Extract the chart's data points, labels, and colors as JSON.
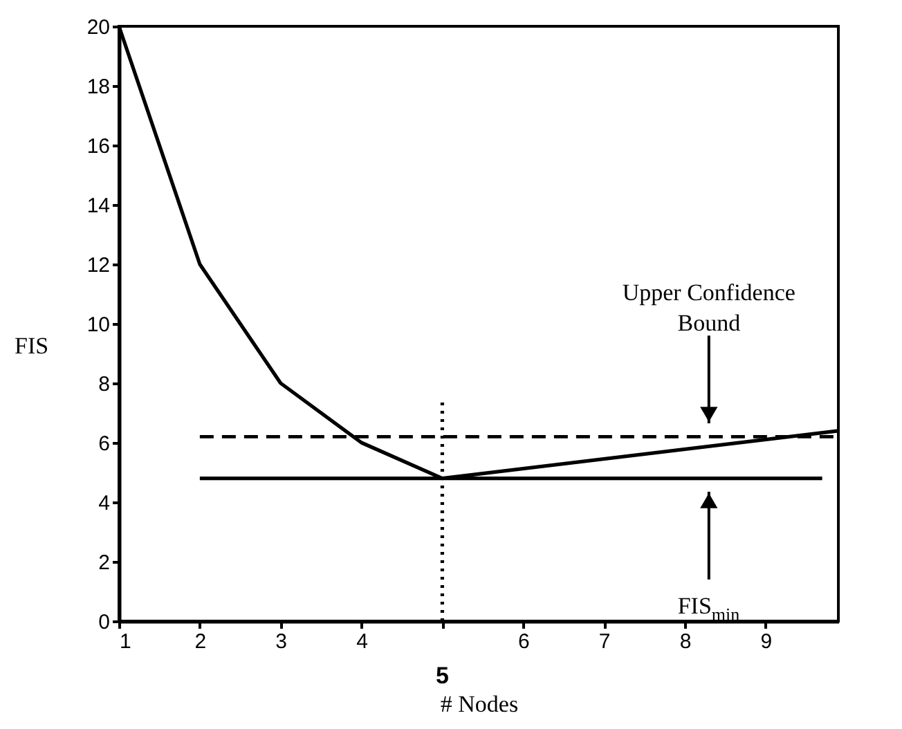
{
  "chart_data": {
    "type": "line",
    "xlabel": "# Nodes",
    "ylabel": "FIS",
    "xlim": [
      1,
      9.9
    ],
    "ylim": [
      0,
      20
    ],
    "xticks": [
      1,
      2,
      3,
      4,
      {
        "value": 5,
        "label": null
      },
      6,
      7,
      8,
      9
    ],
    "yticks": [
      0,
      2,
      4,
      6,
      8,
      10,
      12,
      14,
      16,
      18,
      20
    ],
    "series": [
      {
        "color": "#000000",
        "x": [
          1,
          2,
          3,
          4,
          5,
          9.9
        ],
        "values": [
          20,
          12,
          8,
          6,
          4.8,
          6.4
        ],
        "line_style": "solid"
      },
      {
        "color": "#000000",
        "x": [
          2,
          9.9
        ],
        "values": [
          6.2,
          6.2
        ],
        "line_style": "dashed"
      },
      {
        "color": "#000000",
        "x": [
          2,
          9.7
        ],
        "values": [
          4.8,
          4.8
        ],
        "line_style": "solid"
      },
      {
        "color": "#000000",
        "x": [
          5,
          5
        ],
        "values": [
          0,
          7.4
        ],
        "line_style": "dotted"
      }
    ],
    "annotations": [
      "Upper Confidence Bound",
      "FIS$_{min}$",
      "5"
    ],
    "grid": false,
    "marker": "none"
  }
}
